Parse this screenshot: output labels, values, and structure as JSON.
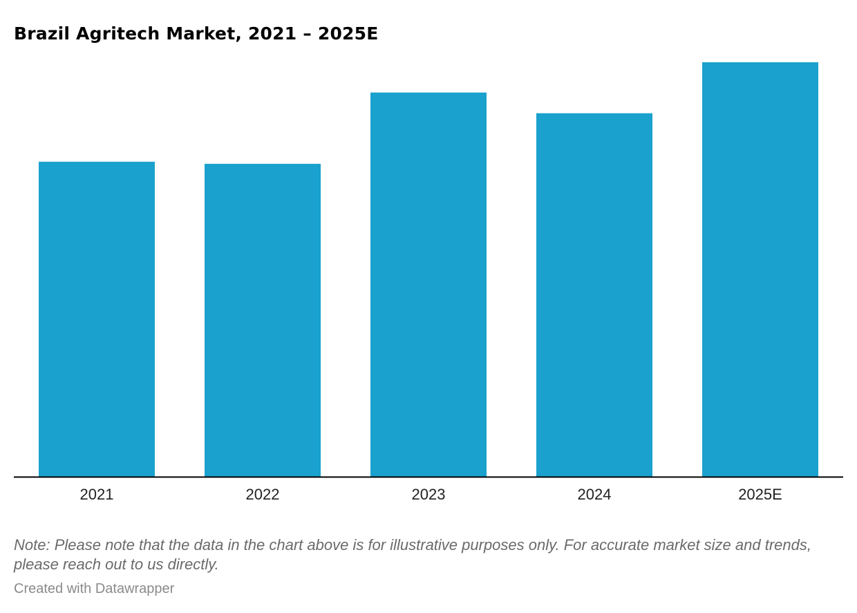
{
  "title": "Brazil Agritech Market, 2021 – 2025E",
  "note": "Note: Please note that the data in the chart above is for illustrative purposes only. For accurate market size and trends, please reach out to us directly.",
  "credit": "Created with Datawrapper",
  "colors": {
    "bar": "#1aa1cd",
    "axis": "#000000"
  },
  "chart_data": {
    "type": "bar",
    "categories": [
      "2021",
      "2022",
      "2023",
      "2024",
      "2025E"
    ],
    "values": [
      76,
      75.5,
      92.7,
      87.7,
      100
    ],
    "ylim": [
      0,
      100
    ],
    "grid": false,
    "legend": "none",
    "xlabel": "",
    "ylabel": ""
  }
}
